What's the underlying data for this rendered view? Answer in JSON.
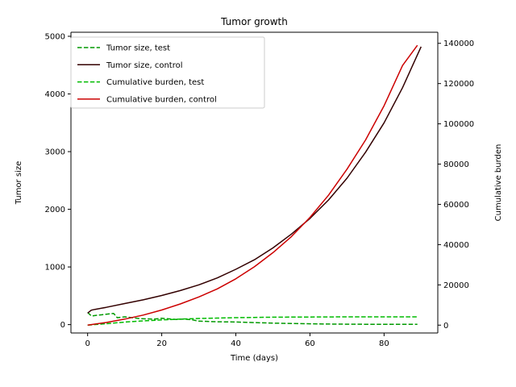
{
  "chart_data": {
    "type": "line",
    "title": "Tumor growth",
    "xlabel": "Time (days)",
    "ylabel_left": "Tumor size",
    "ylabel_right": "Cumulative burden",
    "xlim": [
      -4.5,
      94.5
    ],
    "ylim_left": [
      -145,
      5070
    ],
    "ylim_right": [
      -3900,
      145500
    ],
    "x_ticks": [
      0,
      20,
      40,
      60,
      80
    ],
    "y_ticks_left": [
      0,
      1000,
      2000,
      3000,
      4000,
      5000
    ],
    "y_ticks_right": [
      0,
      20000,
      40000,
      60000,
      80000,
      100000,
      120000,
      140000
    ],
    "grid": false,
    "legend_position": "top-left",
    "series": [
      {
        "name": "Tumor size, test",
        "axis": "left",
        "color": "#009900",
        "style": "dashed",
        "x": [
          0,
          1,
          3,
          5,
          7,
          8,
          10,
          12,
          14,
          16,
          18,
          20,
          22,
          24,
          26,
          28,
          30,
          35,
          40,
          45,
          50,
          55,
          60,
          65,
          70,
          75,
          80,
          85,
          89
        ],
        "y": [
          210,
          150,
          165,
          180,
          195,
          120,
          135,
          120,
          105,
          100,
          95,
          110,
          100,
          90,
          95,
          85,
          60,
          50,
          45,
          35,
          25,
          20,
          15,
          10,
          8,
          6,
          5,
          4,
          4
        ]
      },
      {
        "name": "Tumor size, control",
        "axis": "left",
        "color": "#330000",
        "style": "solid",
        "x": [
          0,
          1,
          2,
          5,
          10,
          15,
          20,
          25,
          30,
          35,
          40,
          45,
          50,
          55,
          60,
          65,
          70,
          75,
          80,
          85,
          90
        ],
        "y": [
          200,
          250,
          265,
          300,
          365,
          430,
          505,
          590,
          690,
          810,
          960,
          1125,
          1330,
          1570,
          1840,
          2160,
          2540,
          2990,
          3500,
          4110,
          4820
        ]
      },
      {
        "name": "Cumulative burden, test",
        "axis": "right",
        "color": "#00bb00",
        "style": "dashed",
        "x": [
          0,
          5,
          10,
          15,
          20,
          25,
          30,
          35,
          40,
          45,
          50,
          55,
          60,
          65,
          70,
          75,
          80,
          85,
          89
        ],
        "y": [
          0,
          700,
          1500,
          2100,
          2600,
          3000,
          3300,
          3500,
          3700,
          3850,
          3950,
          4000,
          4050,
          4080,
          4100,
          4110,
          4115,
          4120,
          4120
        ]
      },
      {
        "name": "Cumulative burden, control",
        "axis": "right",
        "color": "#cc0000",
        "style": "solid",
        "x": [
          0,
          5,
          10,
          15,
          20,
          25,
          30,
          35,
          40,
          45,
          50,
          55,
          60,
          65,
          70,
          75,
          80,
          85,
          89
        ],
        "y": [
          0,
          1300,
          3000,
          5000,
          7500,
          10500,
          14000,
          18000,
          23000,
          29000,
          36000,
          44000,
          53500,
          64500,
          77500,
          92000,
          109000,
          129000,
          139000
        ]
      }
    ]
  }
}
